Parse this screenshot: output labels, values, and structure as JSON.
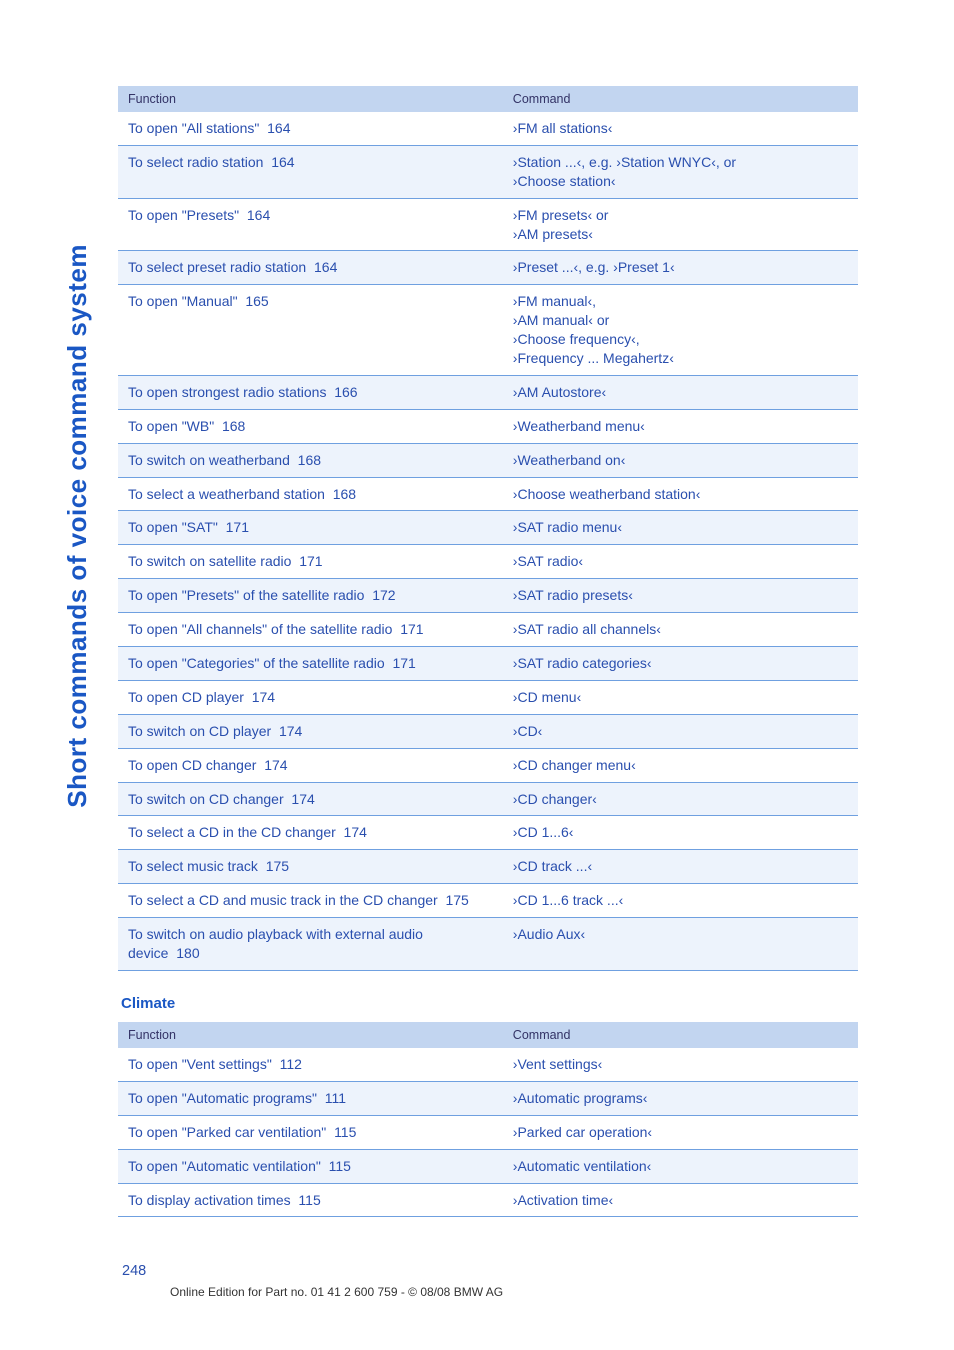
{
  "side_label": "Short commands of voice command system",
  "page_number": "248",
  "footer_text": "Online Edition for Part no. 01 41 2 600 759 - © 08/08 BMW AG",
  "table1": {
    "header_bg": "#c2d5f0",
    "row_odd_bg": "#ffffff",
    "row_even_bg": "#edf3fc",
    "cols": {
      "func": "Function",
      "cmd": "Command"
    },
    "rows": [
      {
        "func": "To open \"All stations\"",
        "ref": "164",
        "cmd": "›FM all stations‹"
      },
      {
        "func": "To select radio station",
        "ref": "164",
        "cmd": "›Station ...‹, e.g. ›Station WNYC‹, or\n›Choose station‹"
      },
      {
        "func": "To open \"Presets\"",
        "ref": "164",
        "cmd": "›FM presets‹ or\n›AM presets‹"
      },
      {
        "func": "To select preset radio station",
        "ref": "164",
        "cmd": "›Preset ...‹, e.g. ›Preset 1‹"
      },
      {
        "func": "To open \"Manual\"",
        "ref": "165",
        "cmd": "›FM manual‹,\n›AM manual‹ or\n›Choose frequency‹,\n›Frequency ... Megahertz‹"
      },
      {
        "func": "To open strongest radio stations",
        "ref": "166",
        "cmd": "›AM Autostore‹"
      },
      {
        "func": "To open \"WB\"",
        "ref": "168",
        "cmd": "›Weatherband menu‹"
      },
      {
        "func": "To switch on weatherband",
        "ref": "168",
        "cmd": "›Weatherband on‹"
      },
      {
        "func": "To select a weatherband station",
        "ref": "168",
        "cmd": "›Choose weatherband station‹"
      },
      {
        "func": "To open \"SAT\"",
        "ref": "171",
        "cmd": "›SAT radio menu‹"
      },
      {
        "func": "To switch on satellite radio",
        "ref": "171",
        "cmd": "›SAT radio‹"
      },
      {
        "func": "To open \"Presets\" of the satellite radio",
        "ref": "172",
        "cmd": "›SAT radio presets‹"
      },
      {
        "func": "To open \"All channels\" of the satellite radio",
        "ref": "171",
        "cmd": "›SAT radio all channels‹"
      },
      {
        "func": "To open \"Categories\" of the satellite radio",
        "ref": "171",
        "cmd": "›SAT radio categories‹"
      },
      {
        "func": "To open CD player",
        "ref": "174",
        "cmd": "›CD menu‹"
      },
      {
        "func": "To switch on CD player",
        "ref": "174",
        "cmd": "›CD‹"
      },
      {
        "func": "To open CD changer",
        "ref": "174",
        "cmd": "›CD changer menu‹"
      },
      {
        "func": "To switch on CD changer",
        "ref": "174",
        "cmd": "›CD changer‹"
      },
      {
        "func": "To select a CD in the CD changer",
        "ref": "174",
        "cmd": "›CD 1...6‹"
      },
      {
        "func": "To select music track",
        "ref": "175",
        "cmd": "›CD track ...‹"
      },
      {
        "func": "To select a CD and music track in the CD changer",
        "ref": "175",
        "cmd": "›CD 1...6 track ...‹"
      },
      {
        "func": "To switch on audio playback with external audio device",
        "ref": "180",
        "cmd": "›Audio Aux‹"
      }
    ]
  },
  "section2_title": "Climate",
  "table2": {
    "header_bg": "#c2d5f0",
    "row_odd_bg": "#ffffff",
    "row_even_bg": "#edf3fc",
    "cols": {
      "func": "Function",
      "cmd": "Command"
    },
    "rows": [
      {
        "func": "To open \"Vent settings\"",
        "ref": "112",
        "cmd": "›Vent settings‹"
      },
      {
        "func": "To open \"Automatic programs\"",
        "ref": "111",
        "cmd": "›Automatic programs‹"
      },
      {
        "func": "To open \"Parked car ventilation\"",
        "ref": "115",
        "cmd": "›Parked car operation‹"
      },
      {
        "func": "To open \"Automatic ventilation\"",
        "ref": "115",
        "cmd": "›Automatic ventilation‹"
      },
      {
        "func": "To display activation times",
        "ref": "115",
        "cmd": "›Activation time‹"
      }
    ]
  }
}
